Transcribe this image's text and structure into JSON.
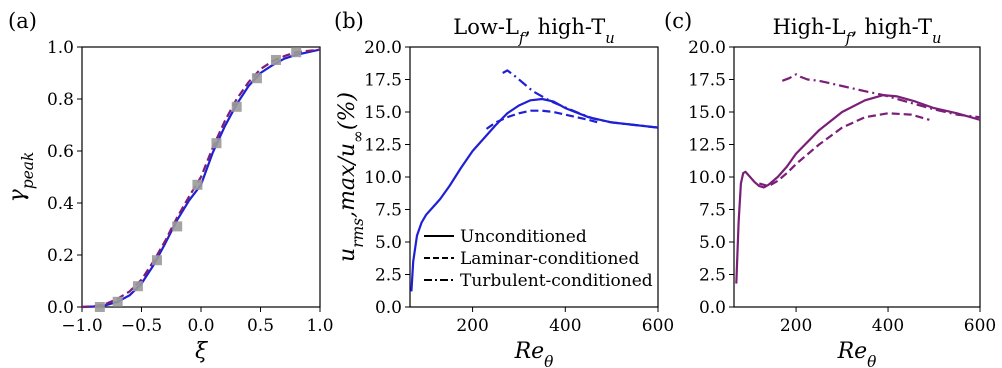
{
  "chart_data": [
    {
      "panel": "(a)",
      "type": "line",
      "title": "",
      "xlabel": "ξ",
      "ylabel": "γ_peak",
      "xlim": [
        -1.0,
        1.0
      ],
      "ylim": [
        0.0,
        1.0
      ],
      "xticks": [
        "−1.0",
        "−0.5",
        "0.0",
        "0.5",
        "1.0"
      ],
      "yticks": [
        "0.0",
        "0.2",
        "0.4",
        "0.6",
        "0.8",
        "1.0"
      ],
      "grid": false,
      "colors": {
        "solid": "#1f1fd6",
        "dashed": "#7a1e78",
        "markers": "#9a9a9a"
      },
      "series": [
        {
          "style": "solid",
          "x": [
            -1.0,
            -0.9,
            -0.8,
            -0.7,
            -0.6,
            -0.5,
            -0.4,
            -0.3,
            -0.2,
            -0.1,
            0.0,
            0.1,
            0.2,
            0.3,
            0.4,
            0.5,
            0.6,
            0.7,
            0.8,
            0.9,
            1.0
          ],
          "y": [
            0.0,
            0.002,
            0.007,
            0.02,
            0.045,
            0.09,
            0.16,
            0.245,
            0.335,
            0.41,
            0.47,
            0.595,
            0.695,
            0.78,
            0.85,
            0.9,
            0.93,
            0.955,
            0.97,
            0.98,
            0.99
          ]
        },
        {
          "style": "dashed",
          "x": [
            -1.0,
            -0.9,
            -0.8,
            -0.7,
            -0.6,
            -0.5,
            -0.4,
            -0.3,
            -0.2,
            -0.1,
            0.0,
            0.1,
            0.2,
            0.3,
            0.4,
            0.5,
            0.6,
            0.7,
            0.8,
            0.9,
            1.0
          ],
          "y": [
            0.0,
            0.003,
            0.012,
            0.032,
            0.06,
            0.105,
            0.175,
            0.255,
            0.345,
            0.425,
            0.5,
            0.615,
            0.715,
            0.8,
            0.865,
            0.915,
            0.945,
            0.965,
            0.98,
            0.985,
            0.99
          ]
        },
        {
          "style": "markers",
          "x": [
            -0.85,
            -0.7,
            -0.53,
            -0.37,
            -0.2,
            -0.03,
            0.13,
            0.3,
            0.47,
            0.63,
            0.8
          ],
          "y": [
            0.0,
            0.02,
            0.08,
            0.18,
            0.31,
            0.47,
            0.63,
            0.77,
            0.88,
            0.95,
            0.98
          ]
        }
      ]
    },
    {
      "panel": "(b)",
      "type": "line",
      "title": "Low-L_f, high-T_u",
      "xlabel": "Re_θ",
      "ylabel": "u_rms,max/u_∞(%)",
      "xlim": [
        65,
        600
      ],
      "ylim": [
        0.0,
        20.0
      ],
      "xticks": [
        "200",
        "400",
        "600"
      ],
      "yticks": [
        "0.0",
        "2.5",
        "5.0",
        "7.5",
        "10.0",
        "12.5",
        "15.0",
        "17.5",
        "20.0"
      ],
      "grid": false,
      "color": "#1f1fd6",
      "legend": {
        "position": "bottom-right",
        "entries": [
          "Unconditioned",
          "Laminar-conditioned",
          "Turbulent-conditioned"
        ]
      },
      "series": [
        {
          "name": "Unconditioned",
          "style": "solid",
          "x": [
            68,
            72,
            80,
            90,
            100,
            115,
            130,
            150,
            175,
            200,
            225,
            250,
            275,
            300,
            325,
            350,
            375,
            400,
            450,
            500,
            550,
            600
          ],
          "y": [
            1.2,
            3.5,
            5.5,
            6.5,
            7.1,
            7.7,
            8.3,
            9.3,
            10.7,
            12.0,
            13.0,
            14.0,
            14.9,
            15.5,
            15.9,
            16.0,
            15.8,
            15.3,
            14.6,
            14.2,
            14.0,
            13.8
          ]
        },
        {
          "name": "Laminar-conditioned",
          "style": "dashed",
          "x": [
            230,
            250,
            275,
            300,
            325,
            350,
            375,
            400,
            425,
            450,
            470
          ],
          "y": [
            13.7,
            14.2,
            14.6,
            14.9,
            15.1,
            15.1,
            15.0,
            14.8,
            14.6,
            14.4,
            14.2
          ]
        },
        {
          "name": "Turbulent-conditioned",
          "style": "dashdot",
          "x": [
            265,
            275,
            290,
            310,
            330,
            350,
            370,
            390,
            410,
            430,
            460,
            500,
            550,
            600
          ],
          "y": [
            18.0,
            18.2,
            17.8,
            17.2,
            16.6,
            16.2,
            15.8,
            15.5,
            15.2,
            14.9,
            14.5,
            14.2,
            14.0,
            13.8
          ]
        }
      ]
    },
    {
      "panel": "(c)",
      "type": "line",
      "title": "High-L_f, high-T_u",
      "xlabel": "Re_θ",
      "ylabel": "",
      "xlim": [
        65,
        600
      ],
      "ylim": [
        0.0,
        20.0
      ],
      "xticks": [
        "200",
        "400",
        "600"
      ],
      "yticks": [
        "0.0",
        "2.5",
        "5.0",
        "7.5",
        "10.0",
        "12.5",
        "15.0",
        "17.5",
        "20.0"
      ],
      "grid": false,
      "color": "#7a1e78",
      "series": [
        {
          "style": "solid",
          "x": [
            70,
            75,
            80,
            85,
            90,
            100,
            110,
            120,
            130,
            140,
            160,
            180,
            200,
            250,
            300,
            350,
            390,
            420,
            460,
            500,
            550,
            600
          ],
          "y": [
            1.8,
            6.5,
            9.5,
            10.3,
            10.4,
            10.0,
            9.6,
            9.3,
            9.2,
            9.4,
            10.0,
            10.8,
            11.8,
            13.6,
            15.0,
            15.9,
            16.3,
            16.2,
            15.8,
            15.3,
            14.9,
            14.4
          ]
        },
        {
          "style": "dashed",
          "x": [
            120,
            140,
            160,
            180,
            200,
            250,
            300,
            350,
            400,
            450,
            490
          ],
          "y": [
            9.5,
            9.3,
            9.7,
            10.3,
            11.0,
            12.5,
            13.8,
            14.6,
            14.9,
            14.8,
            14.4
          ]
        },
        {
          "style": "dashdot",
          "x": [
            170,
            185,
            200,
            210,
            225,
            250,
            300,
            350,
            390,
            420,
            460,
            500,
            550,
            600
          ],
          "y": [
            17.4,
            17.6,
            17.9,
            17.7,
            17.5,
            17.4,
            17.0,
            16.6,
            16.3,
            16.0,
            15.6,
            15.2,
            14.8,
            14.6
          ]
        }
      ]
    }
  ]
}
